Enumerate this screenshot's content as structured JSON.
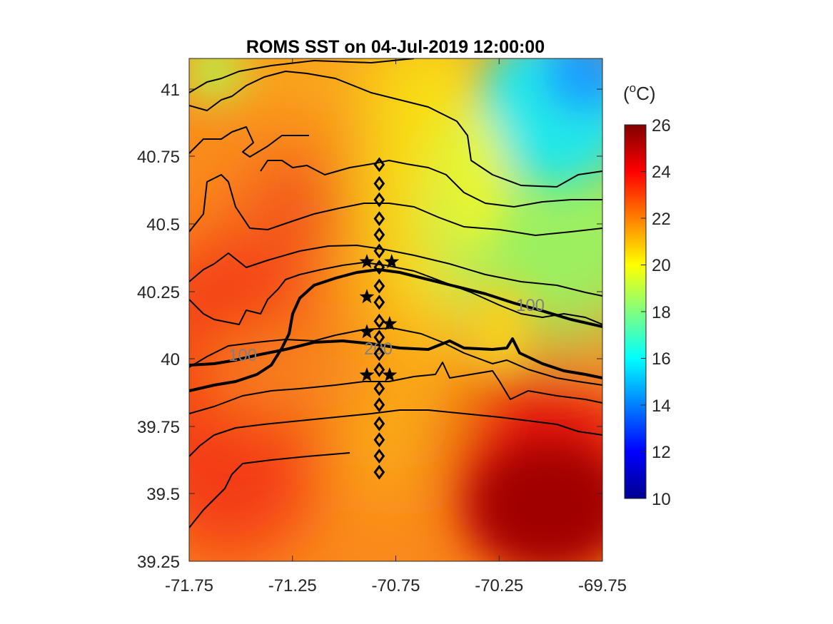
{
  "chart_data": {
    "type": "heatmap",
    "title": "ROMS SST on 04-Jul-2019 12:00:00",
    "xlim": [
      -71.75,
      -69.75
    ],
    "ylim": [
      39.25,
      41.1
    ],
    "x_ticks": [
      "-71.75",
      "-71.25",
      "-70.75",
      "-70.25",
      "-69.75"
    ],
    "y_ticks": [
      "41",
      "40.75",
      "40.5",
      "40.25",
      "40",
      "39.75",
      "39.5",
      "39.25"
    ],
    "colorbar": {
      "unit_label": "(oC)",
      "unit_base_open": "(",
      "unit_sup": "o",
      "unit_base_close": "C)",
      "range": [
        10,
        26
      ],
      "ticks": [
        "26",
        "24",
        "22",
        "20",
        "18",
        "16",
        "14",
        "12",
        "10"
      ],
      "colormap": "jet"
    },
    "contour_labels": [
      "100",
      "100",
      "200"
    ],
    "stations": {
      "diamonds_lon": -70.83,
      "diamonds_lat": [
        40.72,
        40.65,
        40.59,
        40.52,
        40.46,
        40.4,
        40.34,
        40.27,
        40.21,
        40.14,
        40.08,
        40.02,
        39.96,
        39.89,
        39.83,
        39.76,
        39.7,
        39.64,
        39.58
      ],
      "stars": [
        [
          -70.89,
          40.36
        ],
        [
          -70.77,
          40.36
        ],
        [
          -70.89,
          40.23
        ],
        [
          -70.89,
          40.1
        ],
        [
          -70.78,
          40.13
        ],
        [
          -70.89,
          39.94
        ],
        [
          -70.78,
          39.94
        ]
      ]
    }
  }
}
